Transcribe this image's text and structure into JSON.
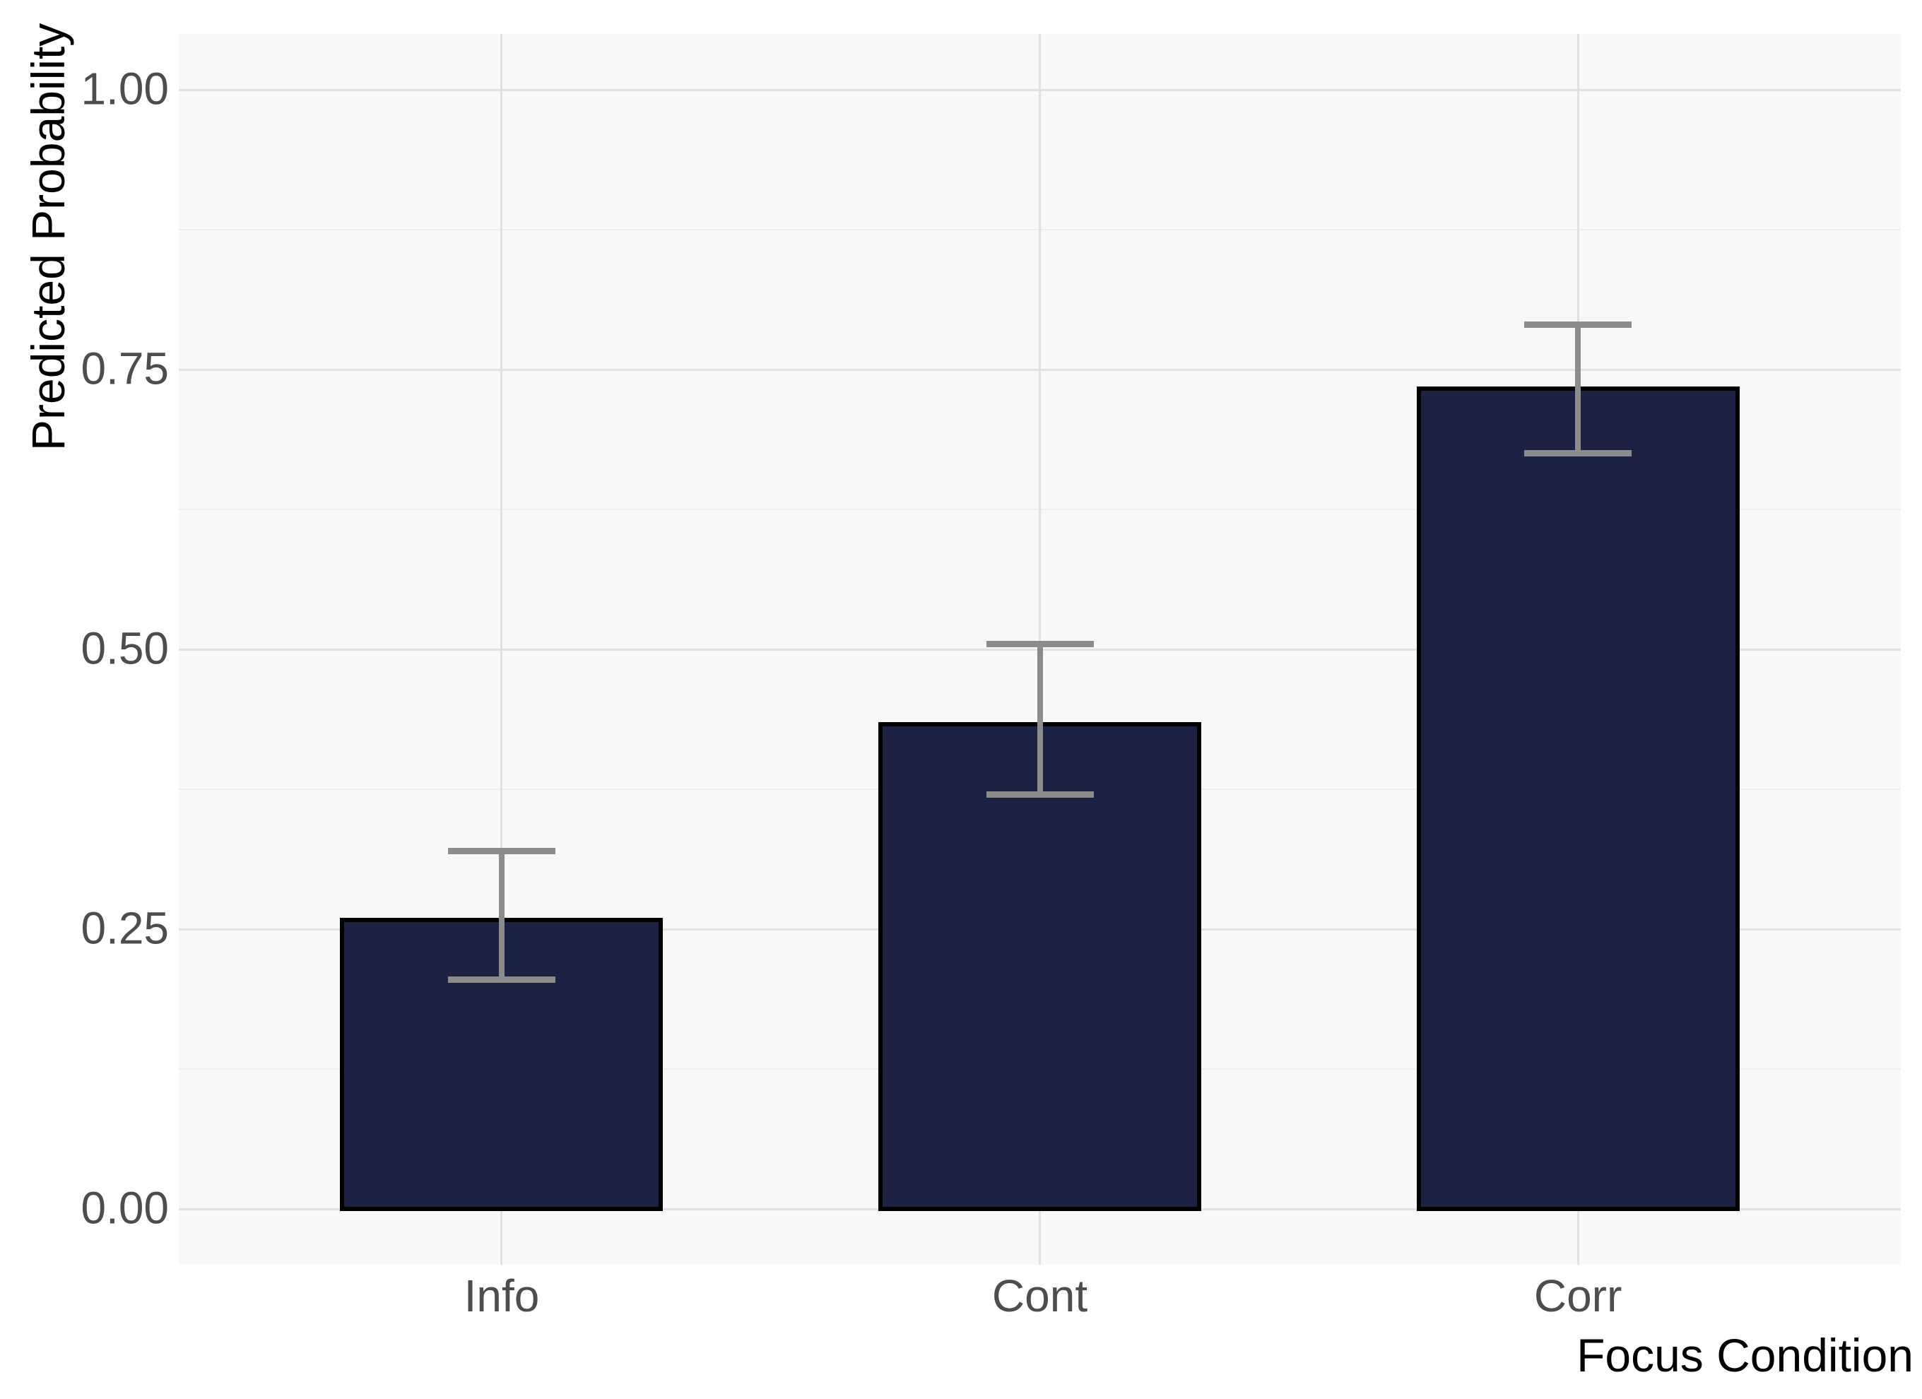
{
  "chart_data": {
    "type": "bar",
    "title": "",
    "xlabel": "Focus Condition",
    "ylabel": "Predicted Probability",
    "categories": [
      "Info",
      "Cont",
      "Corr"
    ],
    "values": [
      0.26,
      0.435,
      0.735
    ],
    "error_bars": {
      "lower": [
        0.205,
        0.37,
        0.675
      ],
      "upper": [
        0.32,
        0.505,
        0.79
      ]
    },
    "y_ticks": [
      {
        "value": 0.0,
        "label": "0.00"
      },
      {
        "value": 0.25,
        "label": "0.25"
      },
      {
        "value": 0.5,
        "label": "0.50"
      },
      {
        "value": 0.75,
        "label": "0.75"
      },
      {
        "value": 1.0,
        "label": "1.00"
      }
    ],
    "y_minor_ticks": [
      0.125,
      0.375,
      0.625,
      0.875
    ],
    "ylim": [
      0,
      1
    ],
    "grid": "horizontal major+minor, vertical major at category centers",
    "legend": "none"
  },
  "style": {
    "bar_fill": "#1B2243",
    "bar_border": "#000000",
    "error_bar_color": "#8C8C8C",
    "panel_bg": "#F8F8F8",
    "figure_bg": "#FFFFFF",
    "grid_major": "#E1E1E1",
    "grid_minor": "#EDEDED",
    "tick_label_color": "#4D4D4D",
    "axis_title_color": "#000000"
  }
}
